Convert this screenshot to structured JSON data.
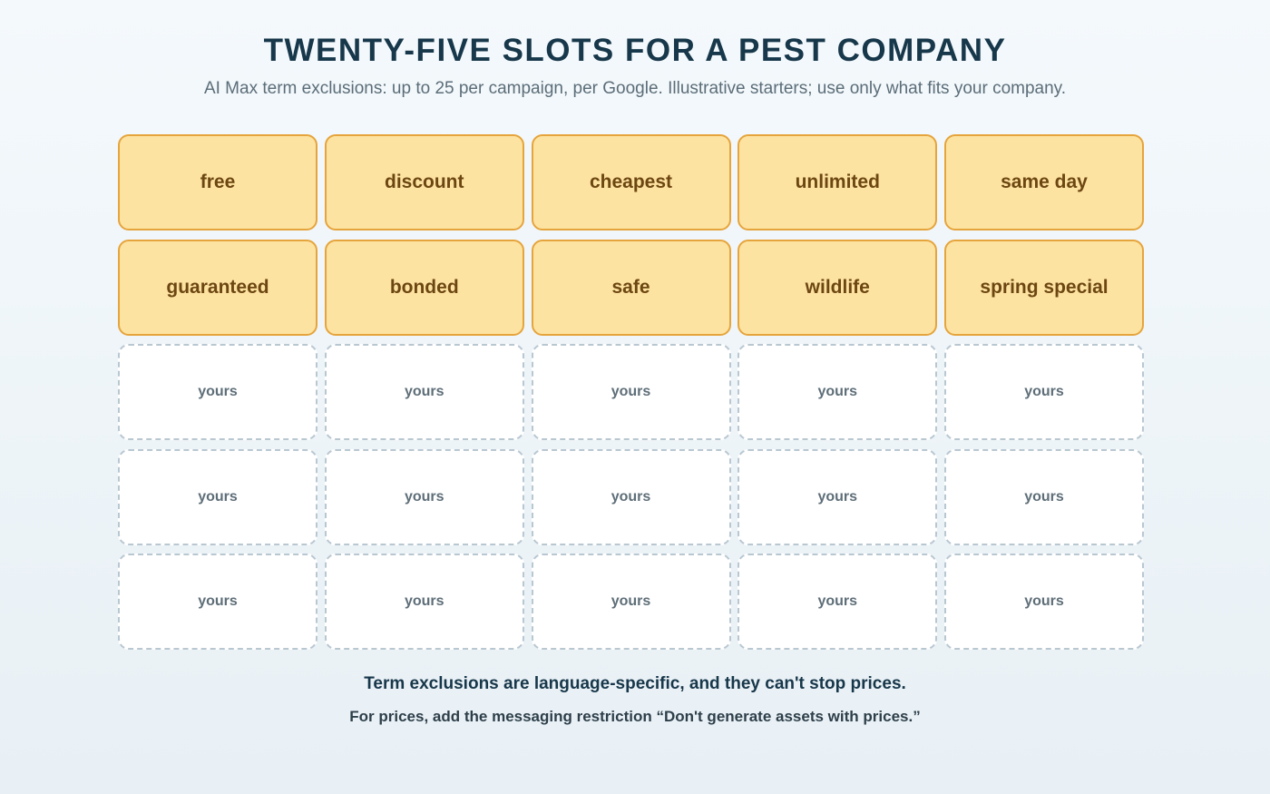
{
  "title": "TWENTY-FIVE SLOTS FOR A PEST COMPANY",
  "subtitle": "AI Max term exclusions: up to 25 per campaign, per Google. Illustrative starters; use only what fits your company.",
  "slots": [
    {
      "label": "free",
      "filled": true
    },
    {
      "label": "discount",
      "filled": true
    },
    {
      "label": "cheapest",
      "filled": true
    },
    {
      "label": "unlimited",
      "filled": true
    },
    {
      "label": "same day",
      "filled": true
    },
    {
      "label": "guaranteed",
      "filled": true
    },
    {
      "label": "bonded",
      "filled": true
    },
    {
      "label": "safe",
      "filled": true
    },
    {
      "label": "wildlife",
      "filled": true
    },
    {
      "label": "spring special",
      "filled": true
    },
    {
      "label": "yours",
      "filled": false
    },
    {
      "label": "yours",
      "filled": false
    },
    {
      "label": "yours",
      "filled": false
    },
    {
      "label": "yours",
      "filled": false
    },
    {
      "label": "yours",
      "filled": false
    },
    {
      "label": "yours",
      "filled": false
    },
    {
      "label": "yours",
      "filled": false
    },
    {
      "label": "yours",
      "filled": false
    },
    {
      "label": "yours",
      "filled": false
    },
    {
      "label": "yours",
      "filled": false
    },
    {
      "label": "yours",
      "filled": false
    },
    {
      "label": "yours",
      "filled": false
    },
    {
      "label": "yours",
      "filled": false
    },
    {
      "label": "yours",
      "filled": false
    },
    {
      "label": "yours",
      "filled": false
    }
  ],
  "footer": {
    "main": "Term exclusions are language-specific, and they can't stop prices.",
    "sub": "For prices, add the messaging restriction “Don't generate assets with prices.”"
  },
  "colors": {
    "filled_fill": "#fde3a1",
    "filled_border": "#e6a43c",
    "empty_border": "#b9c7d1",
    "title": "#17374a"
  }
}
